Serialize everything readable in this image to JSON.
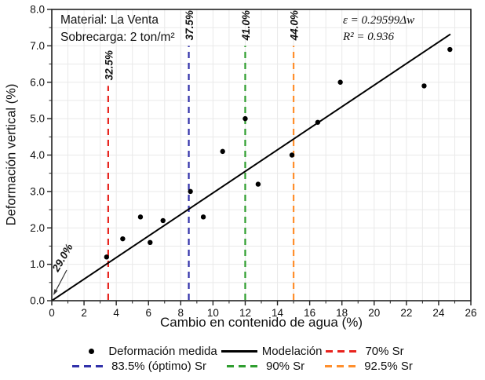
{
  "chart_data": {
    "type": "scatter",
    "xlabel": "Cambio en contenido de agua (%)",
    "ylabel": "Deformación vertical (%)",
    "xlim": [
      0,
      26
    ],
    "ylim": [
      0,
      8
    ],
    "x_major_ticks": [
      0,
      2,
      4,
      6,
      8,
      10,
      12,
      14,
      16,
      18,
      20,
      22,
      24,
      26
    ],
    "y_major_ticks": [
      0,
      1,
      2,
      3,
      4,
      5,
      6,
      7,
      8
    ],
    "x_minor_step": 1,
    "y_minor_step": 0.5,
    "grid": true,
    "legend_position": "bottom",
    "colors": {
      "grid": "#e9e9e9",
      "axis": "#222222",
      "points": "#000000"
    },
    "info_lines": [
      "Material: La Venta",
      "Sobrecarga: 2 ton/m²"
    ],
    "equation_lines": [
      "ε = 0.29599Δw",
      "R² = 0.936"
    ],
    "series": [
      {
        "name": "Deformación medida",
        "type": "scatter",
        "color": "#000000",
        "points": [
          [
            3.4,
            1.2
          ],
          [
            4.4,
            1.7
          ],
          [
            5.5,
            2.3
          ],
          [
            6.1,
            1.6
          ],
          [
            6.9,
            2.2
          ],
          [
            8.6,
            3.0
          ],
          [
            9.4,
            2.3
          ],
          [
            10.6,
            4.1
          ],
          [
            12.0,
            5.0
          ],
          [
            12.8,
            3.2
          ],
          [
            14.9,
            4.0
          ],
          [
            16.5,
            4.9
          ],
          [
            17.9,
            6.0
          ],
          [
            23.1,
            5.9
          ],
          [
            24.7,
            6.9
          ]
        ]
      },
      {
        "name": "Modelación",
        "type": "line",
        "color": "#000000",
        "slope": 0.29599,
        "intercept": 0,
        "x_range": [
          0,
          24.73
        ]
      }
    ],
    "reference_lines": [
      {
        "label": "32.5%",
        "x": 3.5,
        "top": 5.9,
        "color": "#e8231d",
        "legend": "70% Sr"
      },
      {
        "label": "37.5%",
        "x": 8.5,
        "top": 7.0,
        "color": "#3232aa",
        "legend": "83.5% (óptimo) Sr"
      },
      {
        "label": "41.0%",
        "x": 12.0,
        "top": 7.0,
        "color": "#2f9e2f",
        "legend": "90% Sr"
      },
      {
        "label": "44.0%",
        "x": 15.0,
        "top": 7.0,
        "color": "#ff8f2d",
        "legend": "92.5% Sr"
      }
    ],
    "annotation": {
      "label": "29.0%",
      "arrow_to": [
        0,
        0
      ]
    },
    "legend": {
      "rows": [
        [
          {
            "marker": "dot",
            "color": "#000000",
            "label": "Deformación medida"
          },
          {
            "marker": "solid",
            "color": "#000000",
            "label": "Modelación"
          },
          {
            "marker": "dashed",
            "color": "#e8231d",
            "label": "70% Sr"
          }
        ],
        [
          {
            "marker": "dashed",
            "color": "#3232aa",
            "label": "83.5% (óptimo) Sr"
          },
          {
            "marker": "dashed",
            "color": "#2f9e2f",
            "label": "90% Sr"
          },
          {
            "marker": "dashed",
            "color": "#ff8f2d",
            "label": "92.5% Sr"
          }
        ]
      ]
    }
  }
}
